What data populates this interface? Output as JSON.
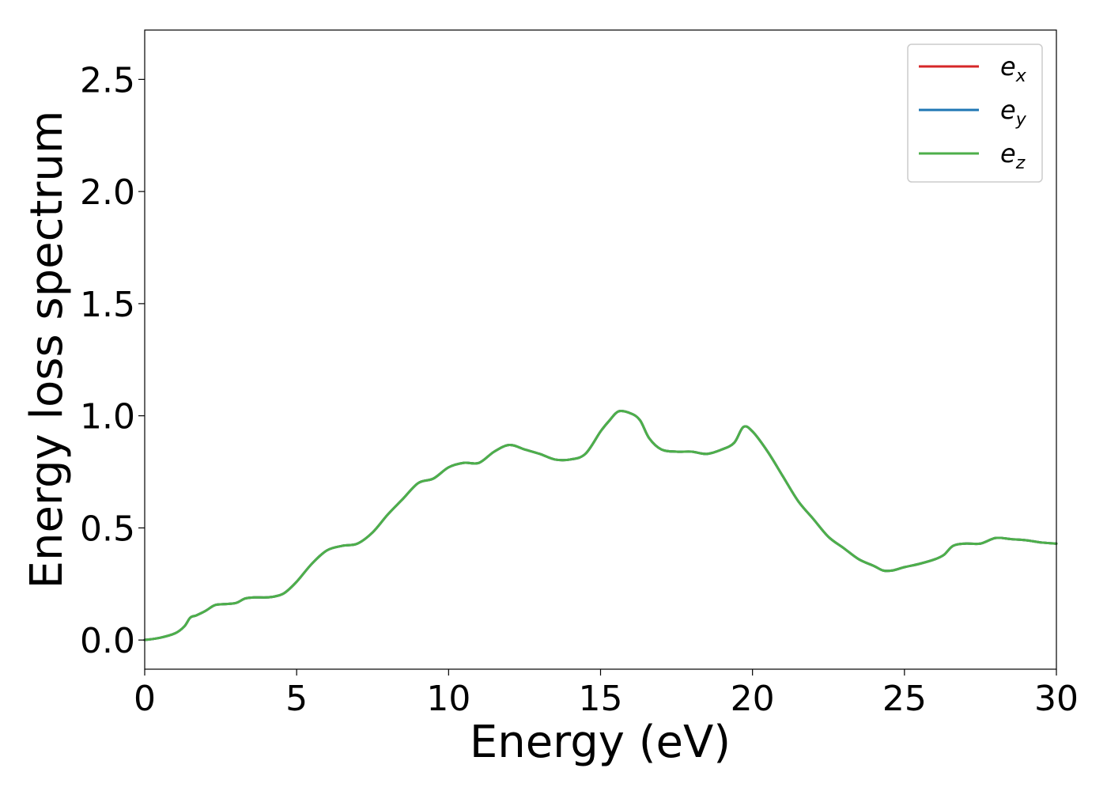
{
  "chart_data": {
    "type": "line",
    "title": "",
    "xlabel": "Energy (eV)",
    "ylabel": "Energy loss spectrum",
    "xlim": [
      0,
      30
    ],
    "ylim": [
      -0.13,
      2.72
    ],
    "x_ticks": [
      0,
      5,
      10,
      15,
      20,
      25,
      30
    ],
    "x_tick_labels": [
      "0",
      "5",
      "10",
      "15",
      "20",
      "25",
      "30"
    ],
    "y_ticks": [
      0.0,
      0.5,
      1.0,
      1.5,
      2.0,
      2.5
    ],
    "y_tick_labels": [
      "0.0",
      "0.5",
      "1.0",
      "1.5",
      "2.0",
      "2.5"
    ],
    "grid": false,
    "legend_position": "top-right",
    "x": [
      0,
      0.5,
      1.0,
      1.3,
      1.5,
      1.7,
      2.0,
      2.3,
      2.6,
      3.0,
      3.3,
      3.6,
      4.0,
      4.3,
      4.6,
      5.0,
      5.5,
      6.0,
      6.5,
      7.0,
      7.5,
      8.0,
      8.5,
      9.0,
      9.5,
      10.0,
      10.5,
      11.0,
      11.5,
      12.0,
      12.5,
      13.0,
      13.5,
      14.0,
      14.5,
      15.0,
      15.3,
      15.6,
      16.0,
      16.3,
      16.6,
      17.0,
      17.5,
      18.0,
      18.5,
      19.0,
      19.4,
      19.7,
      20.0,
      20.5,
      21.0,
      21.5,
      22.0,
      22.5,
      23.0,
      23.5,
      24.0,
      24.3,
      24.6,
      25.0,
      25.5,
      26.0,
      26.3,
      26.6,
      27.0,
      27.5,
      28.0,
      28.5,
      29.0,
      29.5,
      30.0
    ],
    "series": [
      {
        "name": "e_x",
        "color": "#d62728",
        "y": [
          0.0,
          0.01,
          0.03,
          0.06,
          0.1,
          0.11,
          0.13,
          0.155,
          0.16,
          0.165,
          0.185,
          0.19,
          0.19,
          0.195,
          0.21,
          0.26,
          0.34,
          0.4,
          0.42,
          0.43,
          0.48,
          0.56,
          0.63,
          0.7,
          0.72,
          0.77,
          0.79,
          0.79,
          0.84,
          0.87,
          0.85,
          0.83,
          0.805,
          0.805,
          0.83,
          0.93,
          0.98,
          1.02,
          1.01,
          0.98,
          0.9,
          0.85,
          0.84,
          0.84,
          0.83,
          0.85,
          0.88,
          0.95,
          0.93,
          0.84,
          0.73,
          0.62,
          0.54,
          0.46,
          0.41,
          0.36,
          0.33,
          0.31,
          0.31,
          0.325,
          0.34,
          0.36,
          0.38,
          0.42,
          0.43,
          0.43,
          0.455,
          0.45,
          0.445,
          0.435,
          0.43
        ]
      },
      {
        "name": "e_y",
        "color": "#1f77b4",
        "y": [
          0.0,
          0.01,
          0.03,
          0.06,
          0.1,
          0.11,
          0.13,
          0.155,
          0.16,
          0.165,
          0.185,
          0.19,
          0.19,
          0.195,
          0.21,
          0.26,
          0.34,
          0.4,
          0.42,
          0.43,
          0.48,
          0.56,
          0.63,
          0.7,
          0.72,
          0.77,
          0.79,
          0.79,
          0.84,
          0.87,
          0.85,
          0.83,
          0.805,
          0.805,
          0.83,
          0.93,
          0.98,
          1.02,
          1.01,
          0.98,
          0.9,
          0.85,
          0.84,
          0.84,
          0.83,
          0.85,
          0.88,
          0.95,
          0.93,
          0.84,
          0.73,
          0.62,
          0.54,
          0.46,
          0.41,
          0.36,
          0.33,
          0.31,
          0.31,
          0.325,
          0.34,
          0.36,
          0.38,
          0.42,
          0.43,
          0.43,
          0.455,
          0.45,
          0.445,
          0.435,
          0.43
        ]
      },
      {
        "name": "e_z",
        "color": "#4daf4a",
        "y": [
          0.0,
          0.01,
          0.03,
          0.06,
          0.1,
          0.11,
          0.13,
          0.155,
          0.16,
          0.165,
          0.185,
          0.19,
          0.19,
          0.195,
          0.21,
          0.26,
          0.34,
          0.4,
          0.42,
          0.43,
          0.48,
          0.56,
          0.63,
          0.7,
          0.72,
          0.77,
          0.79,
          0.79,
          0.84,
          0.87,
          0.85,
          0.83,
          0.805,
          0.805,
          0.83,
          0.93,
          0.98,
          1.02,
          1.01,
          0.98,
          0.9,
          0.85,
          0.84,
          0.84,
          0.83,
          0.85,
          0.88,
          0.95,
          0.93,
          0.84,
          0.73,
          0.62,
          0.54,
          0.46,
          0.41,
          0.36,
          0.33,
          0.31,
          0.31,
          0.325,
          0.34,
          0.36,
          0.38,
          0.42,
          0.43,
          0.43,
          0.455,
          0.45,
          0.445,
          0.435,
          0.43
        ]
      }
    ],
    "legend": [
      {
        "base": "e",
        "sub": "x",
        "color": "#d62728"
      },
      {
        "base": "e",
        "sub": "y",
        "color": "#1f77b4"
      },
      {
        "base": "e",
        "sub": "z",
        "color": "#4daf4a"
      }
    ]
  }
}
